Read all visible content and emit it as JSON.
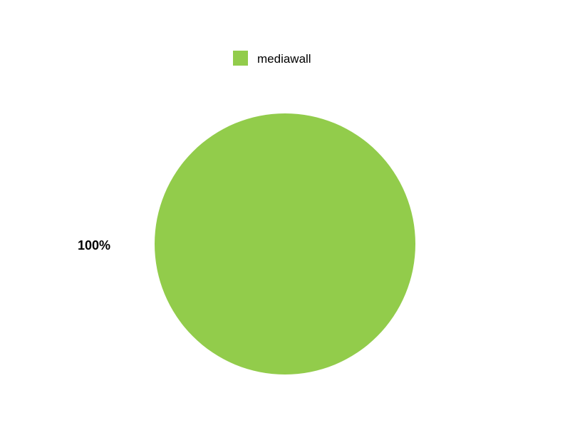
{
  "chart_data": {
    "type": "pie",
    "title": "",
    "legend_position": "top",
    "slices": [
      {
        "label": "mediawall",
        "value": 100,
        "percent_label": "100%",
        "color": "#92cc4b"
      }
    ]
  }
}
